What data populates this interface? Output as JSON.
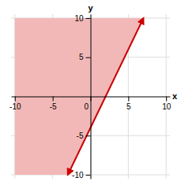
{
  "chart_data": {
    "type": "line",
    "xlabel": "x",
    "ylabel": "y",
    "xlim": [
      -10.5,
      10.5
    ],
    "ylim": [
      -10.5,
      10.5
    ],
    "xticks": [
      -10,
      -5,
      0,
      5,
      10
    ],
    "yticks": [
      -10,
      -5,
      5,
      10
    ],
    "grid": true,
    "series": [
      {
        "type": "area",
        "color": "#f2b8b8",
        "x": [
          -3,
          -10,
          -10,
          7
        ],
        "values": [
          -10,
          -10,
          10,
          10
        ]
      },
      {
        "type": "line",
        "color": "#cc0000",
        "x": [
          -3,
          7
        ],
        "values": [
          -10,
          10
        ]
      }
    ]
  }
}
